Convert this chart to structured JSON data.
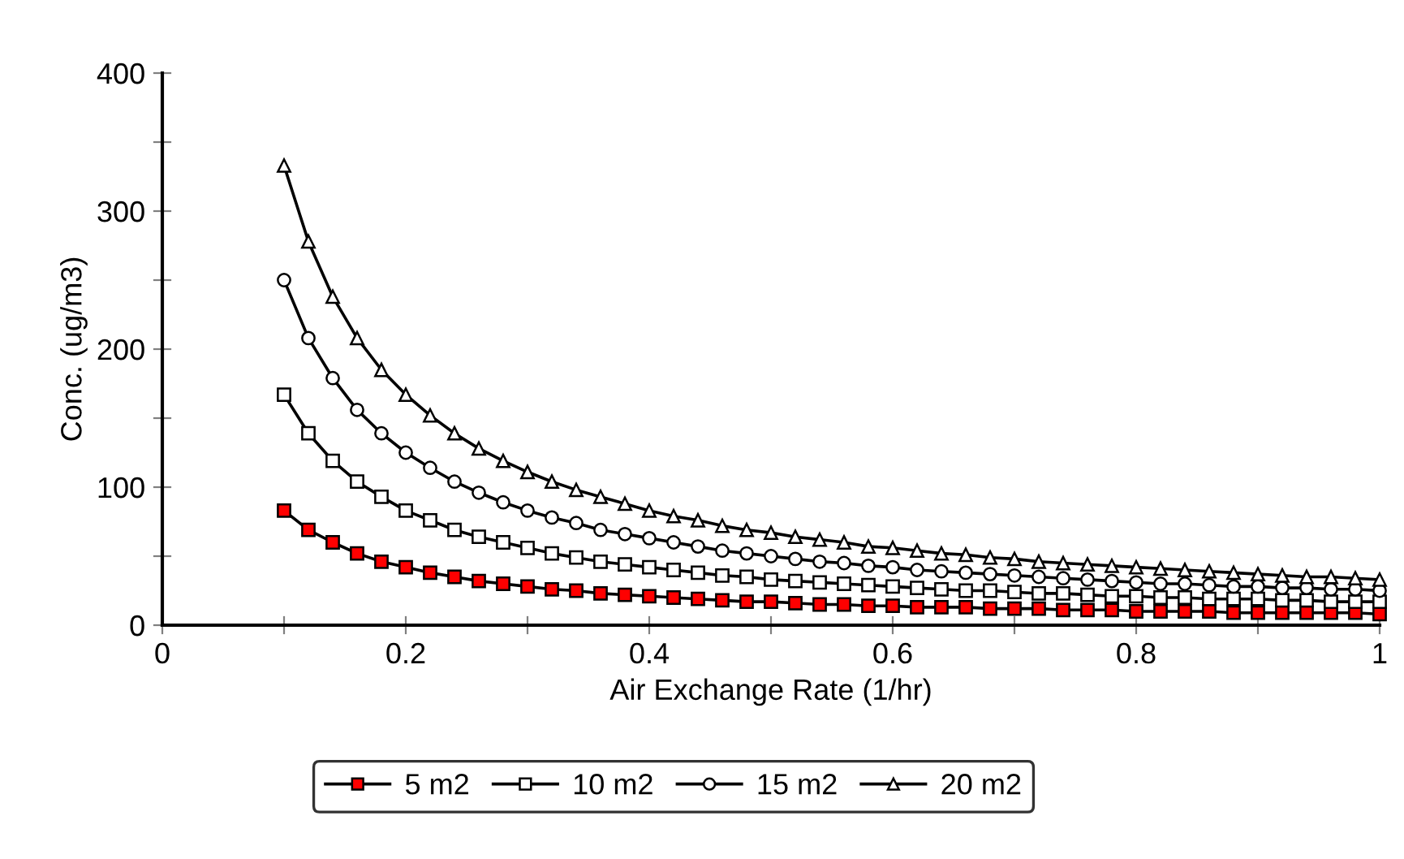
{
  "chart_data": {
    "type": "line",
    "xlabel": "Air Exchange Rate (1/hr)",
    "ylabel": "Conc. (ug/m3)",
    "x": [
      0.1,
      0.12,
      0.14,
      0.16,
      0.18,
      0.2,
      0.22,
      0.24,
      0.26,
      0.28,
      0.3,
      0.32,
      0.34,
      0.36,
      0.38,
      0.4,
      0.42,
      0.44,
      0.46,
      0.48,
      0.5,
      0.52,
      0.54,
      0.56,
      0.58,
      0.6,
      0.62,
      0.64,
      0.66,
      0.68,
      0.7,
      0.72,
      0.74,
      0.76,
      0.78,
      0.8,
      0.82,
      0.84,
      0.86,
      0.88,
      0.9,
      0.92,
      0.94,
      0.96,
      0.98,
      1.0
    ],
    "series": [
      {
        "name": "5 m2",
        "color": "#ff0000",
        "marker": "square",
        "values": [
          83,
          69,
          60,
          52,
          46,
          42,
          38,
          35,
          32,
          30,
          28,
          26,
          25,
          23,
          22,
          21,
          20,
          19,
          18,
          17,
          17,
          16,
          15,
          15,
          14,
          14,
          13,
          13,
          13,
          12,
          12,
          12,
          11,
          11,
          11,
          10,
          10,
          10,
          10,
          9,
          9,
          9,
          9,
          9,
          9,
          8
        ]
      },
      {
        "name": "10 m2",
        "color": "#ffffff",
        "marker": "square",
        "values": [
          167,
          139,
          119,
          104,
          93,
          83,
          76,
          69,
          64,
          60,
          56,
          52,
          49,
          46,
          44,
          42,
          40,
          38,
          36,
          35,
          33,
          32,
          31,
          30,
          29,
          28,
          27,
          26,
          25,
          25,
          24,
          23,
          23,
          22,
          21,
          21,
          20,
          20,
          19,
          19,
          19,
          18,
          18,
          17,
          17,
          17
        ]
      },
      {
        "name": "15 m2",
        "color": "#ffffff",
        "marker": "circle",
        "values": [
          250,
          208,
          179,
          156,
          139,
          125,
          114,
          104,
          96,
          89,
          83,
          78,
          74,
          69,
          66,
          63,
          60,
          57,
          54,
          52,
          50,
          48,
          46,
          45,
          43,
          42,
          40,
          39,
          38,
          37,
          36,
          35,
          34,
          33,
          32,
          31,
          30,
          30,
          29,
          28,
          28,
          27,
          27,
          26,
          26,
          25
        ]
      },
      {
        "name": "20 m2",
        "color": "#ffffff",
        "marker": "triangle",
        "values": [
          333,
          278,
          238,
          208,
          185,
          167,
          152,
          139,
          128,
          119,
          111,
          104,
          98,
          93,
          88,
          83,
          79,
          76,
          72,
          69,
          67,
          64,
          62,
          60,
          57,
          56,
          54,
          52,
          51,
          49,
          48,
          46,
          45,
          44,
          43,
          42,
          41,
          40,
          39,
          38,
          37,
          36,
          35,
          35,
          34,
          33
        ]
      }
    ],
    "xlim": [
      0,
      1
    ],
    "xticks": [
      0,
      {
        "value": 0.1,
        "label": null
      },
      0.2,
      {
        "value": 0.3,
        "label": null
      },
      0.4,
      {
        "value": 0.5,
        "label": null
      },
      0.6,
      {
        "value": 0.7,
        "label": null
      },
      0.8,
      {
        "value": 0.9,
        "label": null
      },
      1
    ],
    "ylim": [
      0,
      400
    ],
    "yticks": [
      0,
      {
        "value": 50,
        "label": null
      },
      100,
      {
        "value": 150,
        "label": null
      },
      200,
      {
        "value": 250,
        "label": null
      },
      300,
      {
        "value": 350,
        "label": null
      },
      400
    ],
    "grid": false,
    "legend": "bottom",
    "line_style": "solid"
  }
}
